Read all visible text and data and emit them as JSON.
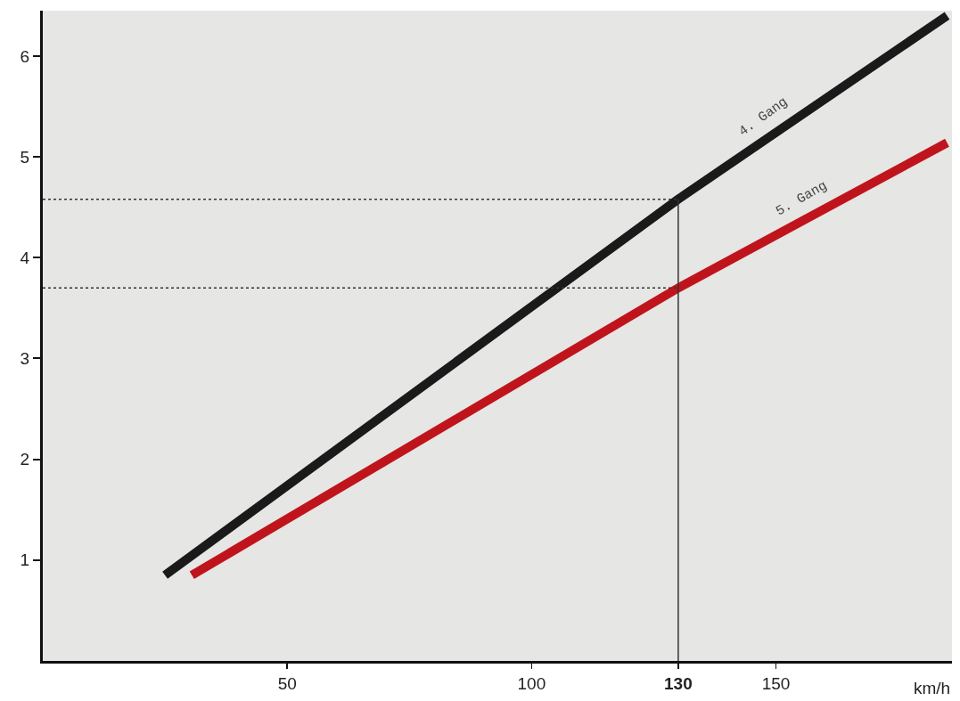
{
  "chart_data": {
    "type": "line",
    "xlabel": "km/h",
    "series": [
      {
        "color": "#1a1a1a",
        "x": [
          25,
          130,
          185
        ],
        "values": [
          0.85,
          4.58,
          6.4
        ]
      },
      {
        "color": "#c0141c",
        "x": [
          30.5,
          130,
          185
        ],
        "values": [
          0.85,
          3.7,
          5.14
        ]
      }
    ],
    "annotations": [
      "4. Gang",
      "5. Gang"
    ],
    "ref_lines": [
      {
        "axis": "y",
        "value": 4.58,
        "line_style": "dotted"
      },
      {
        "axis": "y",
        "value": 3.7,
        "line_style": "dotted"
      },
      {
        "axis": "x",
        "value": 130,
        "line_style": "solid"
      }
    ],
    "xlim": [
      0,
      186
    ],
    "xticks": [
      50,
      100,
      130,
      150
    ],
    "ylim": [
      0,
      6.45
    ],
    "yticks": [
      1,
      2,
      3,
      4,
      5,
      6
    ],
    "grid": false,
    "marker": "none",
    "line_style": "solid"
  }
}
